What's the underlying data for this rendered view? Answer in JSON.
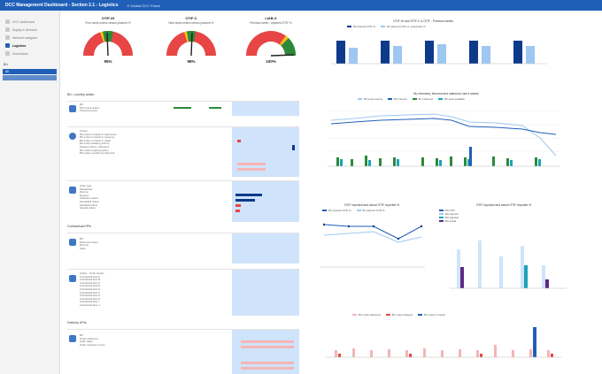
{
  "app": {
    "title": "DCC Management Dashboard - Section 2.1 - Logistics",
    "subtitle": "© Global DCC Portal"
  },
  "sidebar": {
    "items": [
      {
        "label": "DCC dashboard",
        "icon": "home-icon",
        "active": false
      },
      {
        "label": "Supply & demand",
        "icon": "chart-icon",
        "active": false
      },
      {
        "label": "Network navigator",
        "icon": "network-icon",
        "active": false
      },
      {
        "label": "Logistics",
        "icon": "truck-icon",
        "active": true
      },
      {
        "label": "Downloads",
        "icon": "download-icon",
        "active": false
      }
    ],
    "filter_label": "BU",
    "filter_value": "All"
  },
  "gauges": [
    {
      "title": "OTIF-IH",
      "subtitle": "Prior week orders versus planned %",
      "value": "95%",
      "pct": 0.95
    },
    {
      "title": "OTIF-C",
      "subtitle": "Next week orders versus planned %",
      "value": "98%",
      "pct": 0.98
    },
    {
      "title": "LIAB-X",
      "subtitle": "Previous week - reported OTIF %",
      "value": "100%",
      "pct": 1.0
    }
  ],
  "left": {
    "sec1_title": "BU / country action",
    "sec2_title": "Contractual KPIs",
    "sec3_title": "Delivery KPIs",
    "tile_labels": {
      "t1": [
        "BU",
        "Prior week orders",
        "Previous period"
      ],
      "t2": [
        "Transit",
        "BU orders in transit to warehouse",
        "BU orders in transit to customer",
        "BU orders in transit to repair",
        "BU orders awaiting pick-up",
        "Delayed orders / deliveries",
        "BU orders requiring action",
        "BU orders overdue by shipment"
      ],
      "t3": [
        "Order type",
        "Dispatched",
        "Returns",
        "Express",
        "Collection orders",
        "Scheduled orders",
        "Standard orders",
        "Special orders"
      ],
      "t4": [
        "BU",
        "Delivered orders",
        "Returns",
        "Open"
      ],
      "t5": [
        "Carrier - Order stream",
        "Contractual lane A",
        "Contractual lane B",
        "Contractual lane C",
        "Contractual lane D",
        "Contractual lane E",
        "Contractual lane F",
        "Contractual lane G",
        "Contractual lane H",
        "Contractual lane I",
        "Contractual lane J"
      ],
      "t6": [
        "BU",
        "Orders delivered",
        "Order delay",
        "Order requests on time"
      ]
    }
  },
  "charts": {
    "top": {
      "title": "OTIF-IH and OTIF-C & OTIF - Previous weeks",
      "legend": [
        "BU planned OTIF %",
        "BU planned OTIF vs. actual plan %"
      ]
    },
    "mid": {
      "title": "BU inventory, inbound and outbound, last 4 weeks",
      "legend": [
        "BU stock volume",
        "BU inbound",
        "BU outbound",
        "BU stock available"
      ]
    },
    "bl": {
      "title": "OTIF reported and actual OTIF reported %",
      "legend": [
        "BU reported OTIF %",
        "BU planned OTIF %"
      ]
    },
    "br": {
      "title": "OTIF reported and actual OTIF reported %",
      "legend": [
        "BU OTIF",
        "BU planned",
        "BU adjusted",
        "BU actual"
      ]
    },
    "bottom": {
      "legend": [
        "BU orders delivered",
        "BU orders delayed",
        "BU orders in transit"
      ]
    }
  },
  "colors": {
    "brand": "#1f5fb8",
    "navy": "#0d3a8a",
    "light_blue": "#9ec7f2",
    "teal": "#1aa3b5",
    "green": "#2a8a3a",
    "purple": "#5b2a86",
    "red": "#e84545",
    "pink": "#f4b6b6"
  }
}
